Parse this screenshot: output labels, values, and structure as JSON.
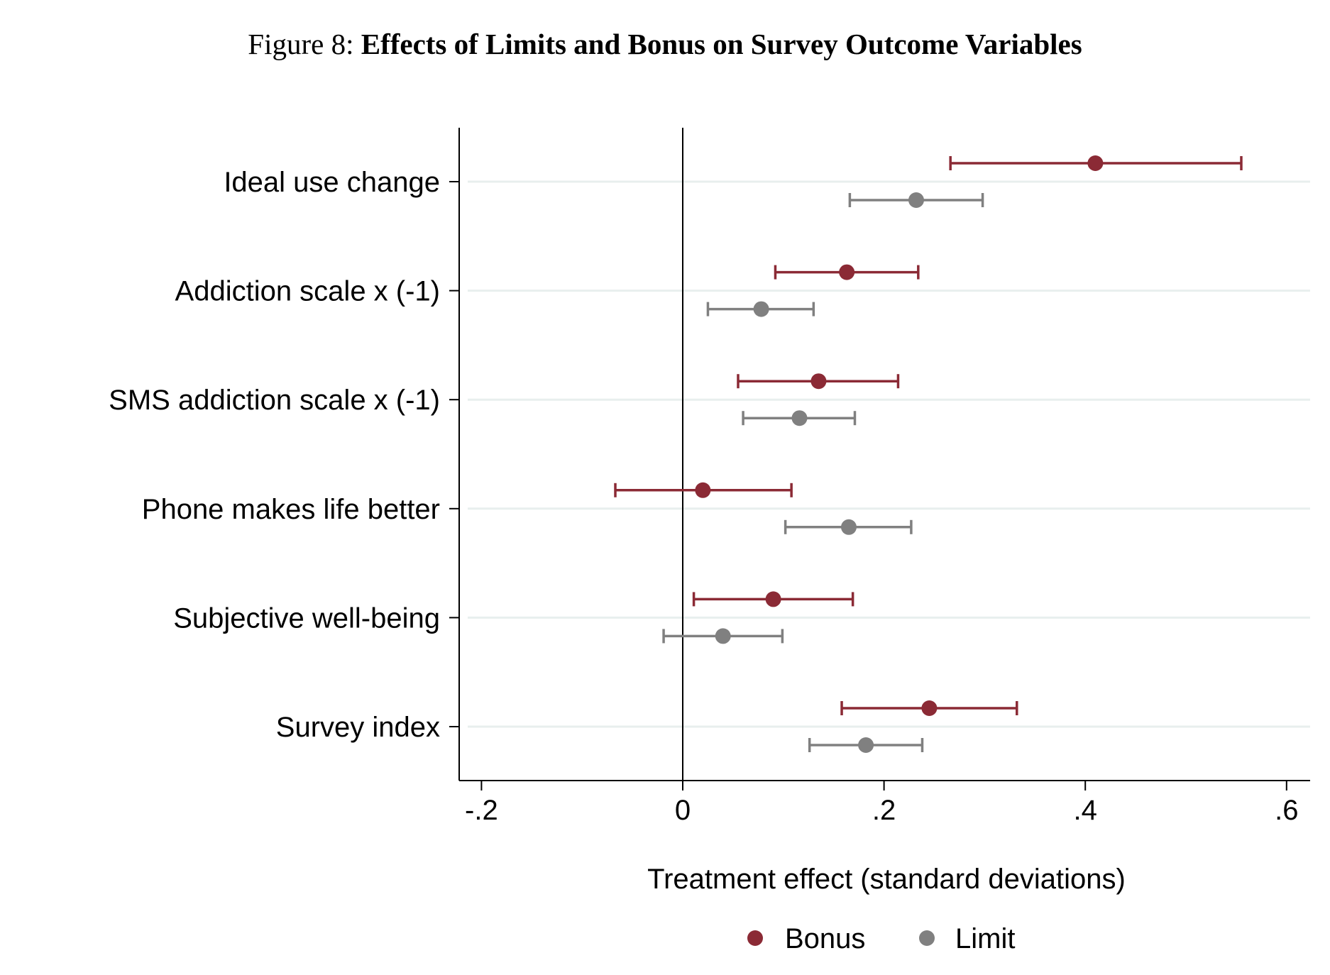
{
  "figure": {
    "prefix": "Figure 8:",
    "title": "Effects of Limits and Bonus on Survey Outcome Variables"
  },
  "chart_data": {
    "type": "scatter",
    "subtype": "coefficient-plot-with-confidence-intervals",
    "title": "Effects of Limits and Bonus on Survey Outcome Variables",
    "xlabel": "Treatment effect (standard deviations)",
    "ylabel": "",
    "xlim": [
      -0.22,
      0.62
    ],
    "xticks": [
      {
        "value": -0.2,
        "label": "-.2"
      },
      {
        "value": 0,
        "label": "0"
      },
      {
        "value": 0.2,
        "label": ".2"
      },
      {
        "value": 0.4,
        "label": ".4"
      },
      {
        "value": 0.6,
        "label": ".6"
      }
    ],
    "reference_line": 0,
    "grid": true,
    "legend_position": "bottom",
    "categories": [
      "Ideal use change",
      "Addiction scale x (-1)",
      "SMS addiction scale x (-1)",
      "Phone makes life better",
      "Subjective well-being",
      "Survey index"
    ],
    "series": [
      {
        "name": "Bonus",
        "color": "#8b2a35",
        "estimates": [
          0.41,
          0.163,
          0.135,
          0.02,
          0.09,
          0.245
        ],
        "ci_low": [
          0.266,
          0.092,
          0.055,
          -0.067,
          0.011,
          0.158
        ],
        "ci_high": [
          0.555,
          0.234,
          0.214,
          0.108,
          0.169,
          0.332
        ]
      },
      {
        "name": "Limit",
        "color": "#808080",
        "estimates": [
          0.232,
          0.078,
          0.116,
          0.165,
          0.04,
          0.182
        ],
        "ci_low": [
          0.166,
          0.025,
          0.06,
          0.102,
          -0.019,
          0.126
        ],
        "ci_high": [
          0.298,
          0.13,
          0.171,
          0.227,
          0.099,
          0.238
        ]
      }
    ]
  }
}
